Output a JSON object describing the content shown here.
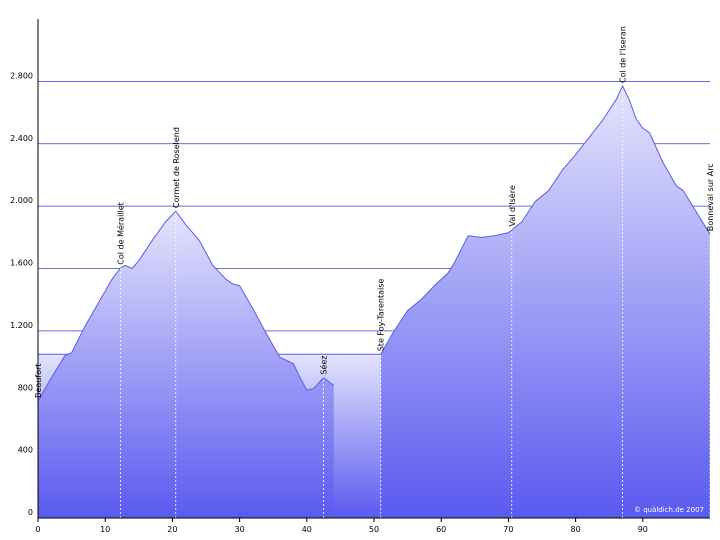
{
  "chart_data": {
    "type": "area",
    "xlim": [
      0,
      100
    ],
    "ylim": [
      0,
      3200
    ],
    "xticks": [
      0,
      10,
      20,
      30,
      40,
      50,
      60,
      70,
      80,
      90
    ],
    "yticks": [
      0,
      400,
      800,
      {
        "value": 1200,
        "label": "1.200"
      },
      {
        "value": 1600,
        "label": "1.600"
      },
      {
        "value": 2000,
        "label": "2.000"
      },
      {
        "value": 2400,
        "label": "2.400"
      },
      {
        "value": 2800,
        "label": "2.800"
      }
    ],
    "grid": true,
    "series": [
      {
        "color": "#5a5af0",
        "x": [
          0,
          51
        ],
        "values": [
          1050,
          1050
        ]
      },
      {
        "color": "#5a5af0",
        "x": [
          0,
          2,
          4,
          5,
          7,
          9,
          11,
          12.3,
          13,
          14,
          15,
          17,
          19,
          20.5,
          22,
          24,
          26,
          28,
          29,
          30,
          32,
          34,
          36,
          38,
          39,
          40,
          41,
          42.5,
          44,
          47,
          51,
          53,
          55,
          57,
          59,
          61,
          62,
          64,
          66,
          68,
          70,
          72,
          74,
          76,
          78,
          80,
          82,
          84,
          86,
          87,
          88,
          89,
          90,
          91,
          93,
          95,
          96,
          98,
          100
        ],
        "values": [
          750,
          900,
          1040,
          1060,
          1230,
          1380,
          1530,
          1605,
          1620,
          1600,
          1650,
          1780,
          1900,
          1968,
          1880,
          1780,
          1620,
          1530,
          1500,
          1490,
          1340,
          1180,
          1030,
          990,
          900,
          820,
          830,
          900,
          850,
          null,
          1050,
          1200,
          1330,
          1400,
          1490,
          1570,
          1640,
          1810,
          1800,
          1810,
          1830,
          1900,
          2030,
          2100,
          2230,
          2330,
          2440,
          2550,
          2680,
          2770,
          2680,
          2560,
          2500,
          2470,
          2280,
          2130,
          2100,
          1960,
          1820
        ]
      }
    ],
    "annotations": [
      {
        "x": 0,
        "y": 750,
        "label": "Beaufort"
      },
      {
        "x": 12.3,
        "y": 1605,
        "label": "Col de Méraillet"
      },
      {
        "x": 20.5,
        "y": 1968,
        "label": "Cormet de Roselend"
      },
      {
        "x": 42.5,
        "y": 900,
        "label": "Séez"
      },
      {
        "x": 51,
        "y": 1050,
        "label": "Ste Foy-Tarentaise"
      },
      {
        "x": 70.5,
        "y": 1850,
        "label": "Val d'Isère"
      },
      {
        "x": 87,
        "y": 2770,
        "label": "Col de l'Iseran"
      },
      {
        "x": 100,
        "y": 1820,
        "label": "Bonneval sur Arc"
      }
    ],
    "credit": "© quäldich.de 2007"
  }
}
